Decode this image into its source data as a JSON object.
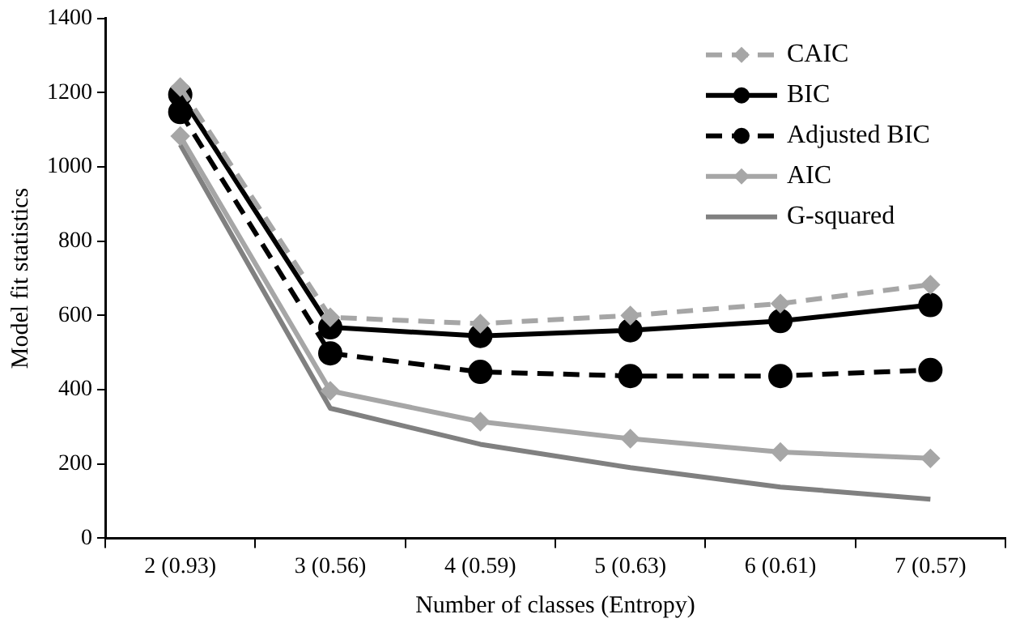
{
  "chart_data": {
    "type": "line",
    "xlabel": "Number of classes (Entropy)",
    "ylabel": "Model fit statistics",
    "categories": [
      "2 (0.93)",
      "3 (0.56)",
      "4 (0.59)",
      "5 (0.63)",
      "6 (0.61)",
      "7 (0.57)"
    ],
    "ylim": [
      0,
      1400
    ],
    "yticks": [
      0,
      200,
      400,
      600,
      800,
      1000,
      1200,
      1400
    ],
    "grid": false,
    "legend": "top right",
    "series": [
      {
        "name": "CAIC",
        "color": "#a6a6a6",
        "marker": "diamond",
        "line_style": "dashed",
        "values": [
          1215,
          595,
          578,
          600,
          632,
          683
        ]
      },
      {
        "name": "BIC",
        "color": "#000000",
        "marker": "circle",
        "line_style": "solid",
        "values": [
          1195,
          568,
          545,
          560,
          585,
          628
        ]
      },
      {
        "name": "Adjusted BIC",
        "color": "#000000",
        "marker": "circle",
        "line_style": "dashed",
        "values": [
          1148,
          498,
          448,
          437,
          437,
          453
        ]
      },
      {
        "name": "AIC",
        "color": "#a6a6a6",
        "marker": "diamond",
        "line_style": "solid",
        "values": [
          1083,
          397,
          314,
          268,
          232,
          215
        ]
      },
      {
        "name": "G-squared",
        "color": "#808080",
        "marker": "none",
        "line_style": "solid",
        "values": [
          1060,
          350,
          253,
          190,
          138,
          105
        ]
      }
    ]
  }
}
